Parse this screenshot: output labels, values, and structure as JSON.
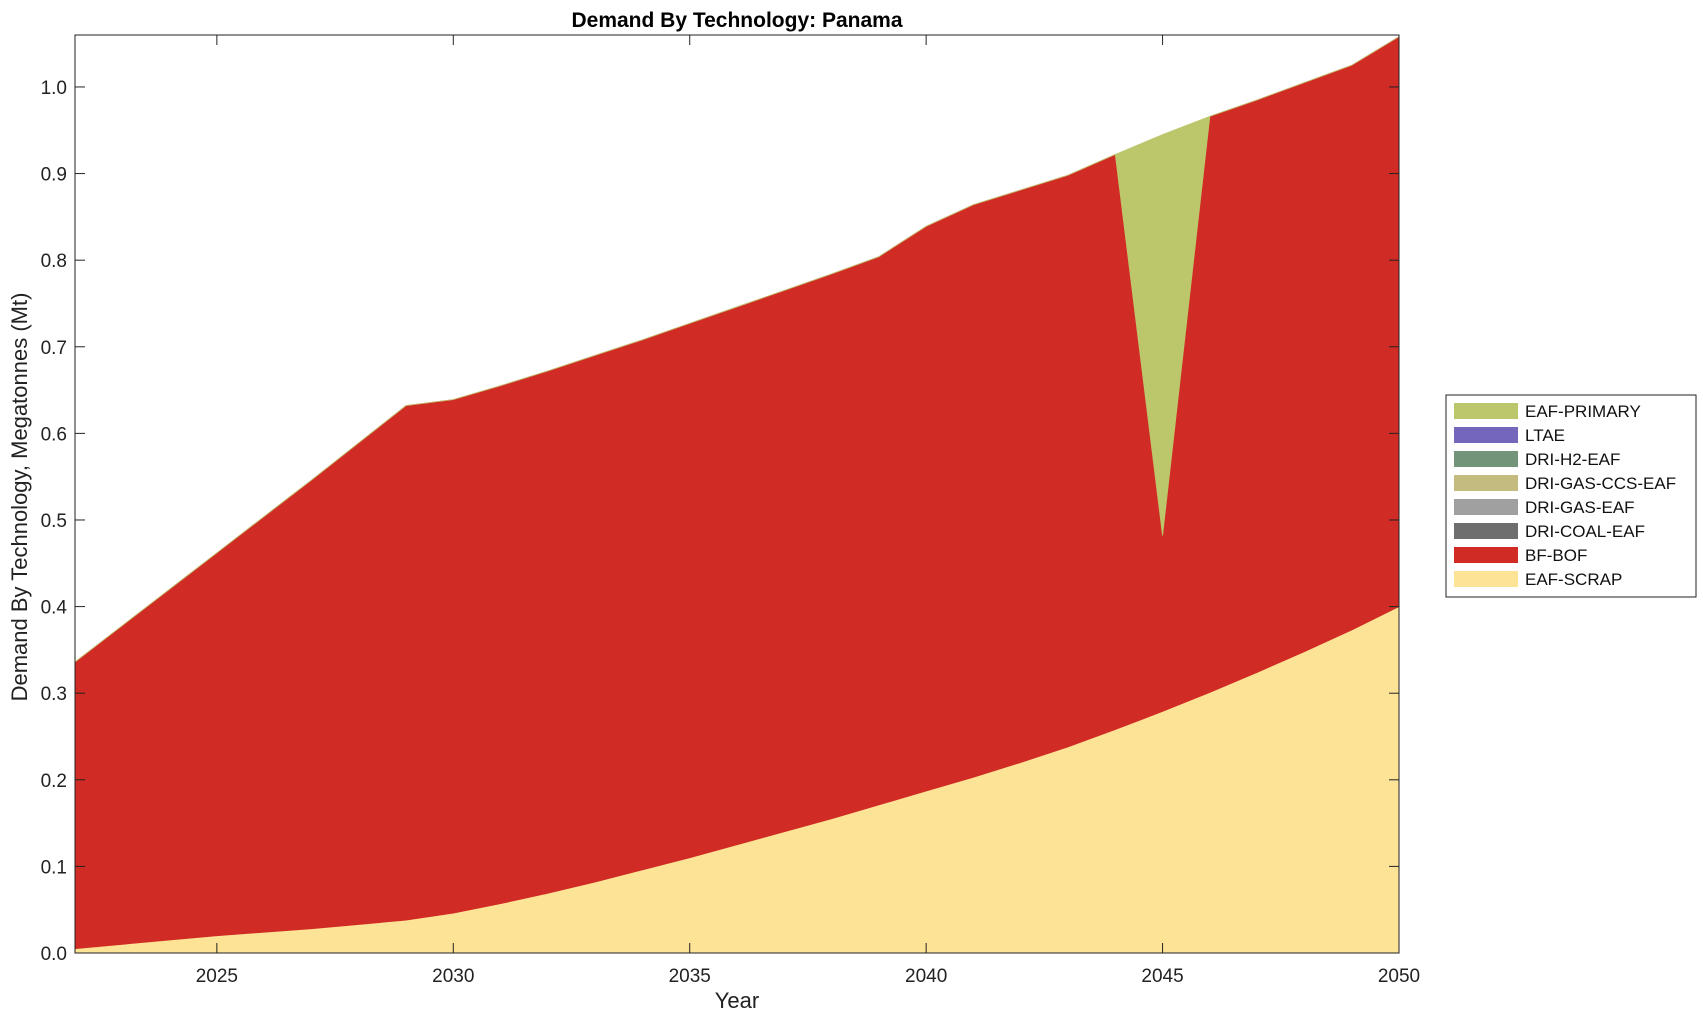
{
  "chart_data": {
    "type": "area",
    "title": "Demand By Technology: Panama",
    "xlabel": "Year",
    "ylabel": "Demand By Technology, Megatonnes (Mt)",
    "xlim": [
      2022,
      2050
    ],
    "ylim": [
      0,
      1.06
    ],
    "xticks": [
      2025,
      2030,
      2035,
      2040,
      2045,
      2050
    ],
    "yticks": [
      0.0,
      0.1,
      0.2,
      0.3,
      0.4,
      0.5,
      0.6,
      0.7,
      0.8,
      0.9,
      1.0
    ],
    "ytick_labels": [
      "0.0",
      "0.1",
      "0.2",
      "0.3",
      "0.4",
      "0.5",
      "0.6",
      "0.7",
      "0.8",
      "0.9",
      "1.0"
    ],
    "grid": false,
    "legend_position": "right",
    "x": [
      2022,
      2023,
      2024,
      2025,
      2026,
      2027,
      2028,
      2029,
      2030,
      2031,
      2032,
      2033,
      2034,
      2035,
      2036,
      2037,
      2038,
      2039,
      2040,
      2041,
      2042,
      2043,
      2044,
      2045,
      2046,
      2047,
      2048,
      2049,
      2050
    ],
    "series": [
      {
        "name": "EAF-SCRAP",
        "color": "#FDE396",
        "values": [
          0.005,
          0.01,
          0.015,
          0.02,
          0.024,
          0.028,
          0.033,
          0.038,
          0.046,
          0.057,
          0.069,
          0.082,
          0.096,
          0.11,
          0.125,
          0.14,
          0.155,
          0.171,
          0.187,
          0.203,
          0.22,
          0.238,
          0.258,
          0.279,
          0.301,
          0.324,
          0.348,
          0.373,
          0.4
        ]
      },
      {
        "name": "BF-BOF",
        "color": "#D12B25",
        "values": [
          0.331,
          0.368,
          0.405,
          0.442,
          0.48,
          0.518,
          0.556,
          0.594,
          0.593,
          0.598,
          0.603,
          0.608,
          0.612,
          0.617,
          0.621,
          0.625,
          0.629,
          0.633,
          0.652,
          0.661,
          0.661,
          0.66,
          0.664,
          0.203,
          0.665,
          0.661,
          0.657,
          0.652,
          0.658
        ]
      },
      {
        "name": "DRI-COAL-EAF",
        "color": "#6E6E6E",
        "values": [
          0,
          0,
          0,
          0,
          0,
          0,
          0,
          0,
          0,
          0,
          0,
          0,
          0,
          0,
          0,
          0,
          0,
          0,
          0,
          0,
          0,
          0,
          0,
          0,
          0,
          0,
          0,
          0,
          0
        ]
      },
      {
        "name": "DRI-GAS-EAF",
        "color": "#A0A0A0",
        "values": [
          0,
          0,
          0,
          0,
          0,
          0,
          0,
          0,
          0,
          0,
          0,
          0,
          0,
          0,
          0,
          0,
          0,
          0,
          0,
          0,
          0,
          0,
          0,
          0,
          0,
          0,
          0,
          0,
          0
        ]
      },
      {
        "name": "DRI-GAS-CCS-EAF",
        "color": "#C4BB7E",
        "values": [
          0,
          0,
          0,
          0,
          0,
          0,
          0,
          0,
          0,
          0,
          0,
          0,
          0,
          0,
          0,
          0,
          0,
          0,
          0,
          0,
          0,
          0,
          0,
          0,
          0,
          0,
          0,
          0,
          0
        ]
      },
      {
        "name": "DRI-H2-EAF",
        "color": "#729478",
        "values": [
          0,
          0,
          0,
          0,
          0,
          0,
          0,
          0,
          0,
          0,
          0,
          0,
          0,
          0,
          0,
          0,
          0,
          0,
          0,
          0,
          0,
          0,
          0,
          0,
          0,
          0,
          0,
          0,
          0
        ]
      },
      {
        "name": "LTAE",
        "color": "#7366BB",
        "values": [
          0,
          0,
          0,
          0,
          0,
          0,
          0,
          0,
          0,
          0,
          0,
          0,
          0,
          0,
          0,
          0,
          0,
          0,
          0,
          0,
          0,
          0,
          0,
          0,
          0,
          0,
          0,
          0,
          0
        ]
      },
      {
        "name": "EAF-PRIMARY",
        "color": "#BCC66B",
        "values": [
          0,
          0,
          0,
          0,
          0,
          0,
          0,
          0,
          0,
          0,
          0,
          0,
          0,
          0,
          0,
          0,
          0,
          0,
          0,
          0,
          0,
          0,
          0,
          0.463,
          0,
          0,
          0,
          0,
          0
        ]
      }
    ],
    "legend_order": [
      "EAF-PRIMARY",
      "LTAE",
      "DRI-H2-EAF",
      "DRI-GAS-CCS-EAF",
      "DRI-GAS-EAF",
      "DRI-COAL-EAF",
      "BF-BOF",
      "EAF-SCRAP"
    ]
  }
}
